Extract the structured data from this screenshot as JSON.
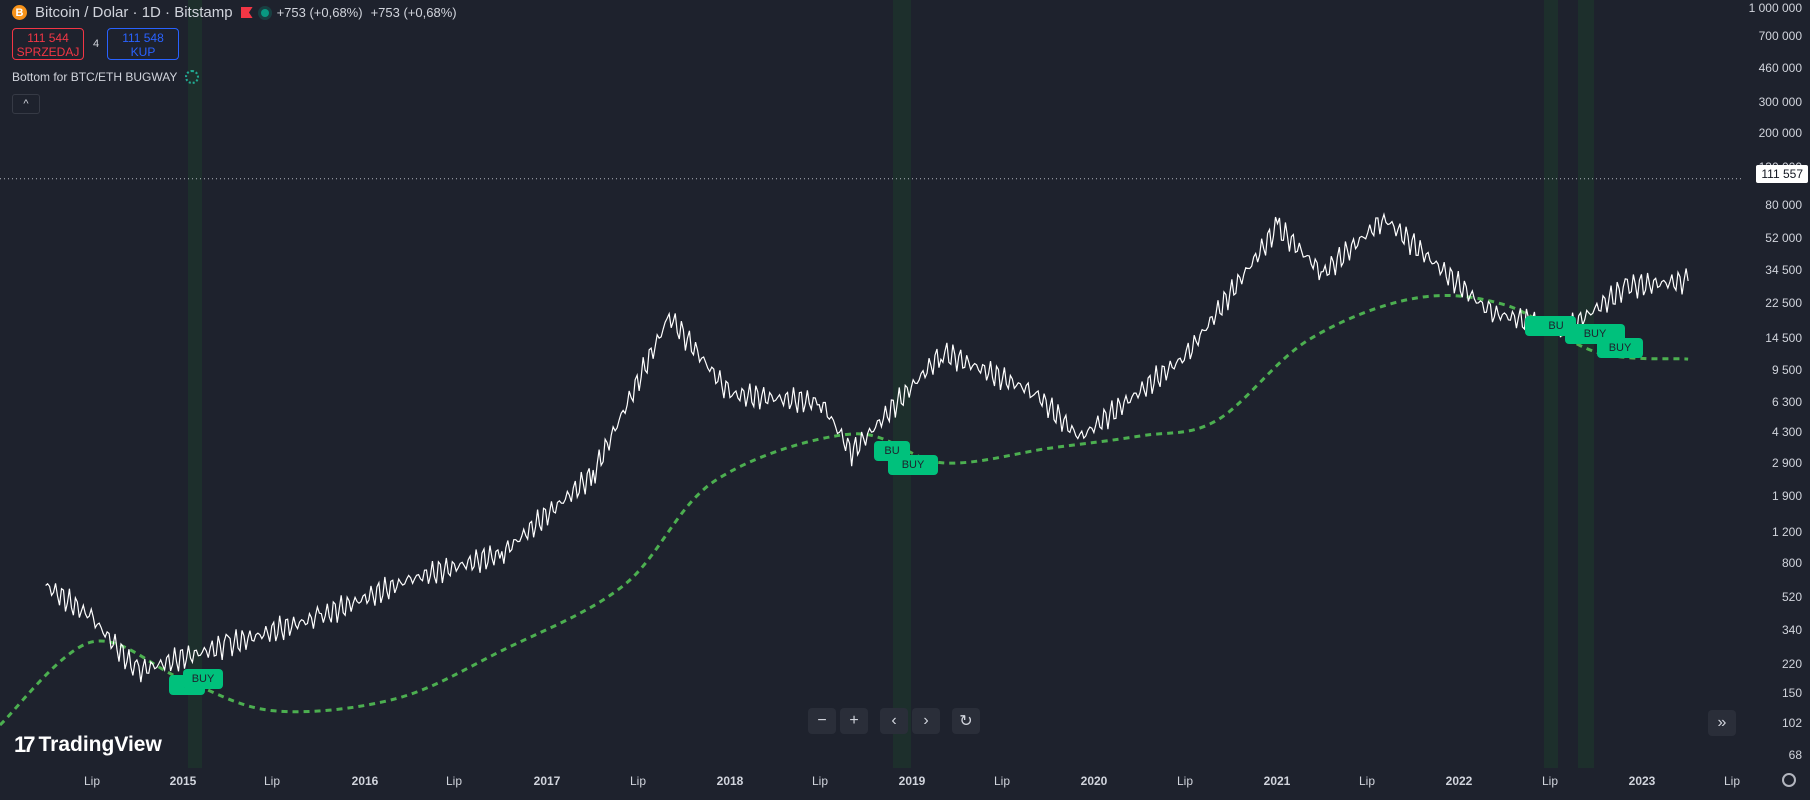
{
  "header": {
    "symbol": "Bitcoin / Dolar · 1D · Bitstamp",
    "coin_glyph": "B",
    "change1": "+753 (+0,68%)",
    "change2": "+753 (+0,68%)"
  },
  "trade": {
    "sell_price": "111 544",
    "sell_label": "SPRZEDAJ",
    "spread": "4",
    "buy_price": "111 548",
    "buy_label": "KUP"
  },
  "indicator": {
    "name": "Bottom for BTC/ETH BUGWAY"
  },
  "collapse_glyph": "^",
  "current_price": "111 557",
  "price_axis": [
    {
      "label": "1 000 000",
      "value": 1000000
    },
    {
      "label": "700 000",
      "value": 700000
    },
    {
      "label": "460 000",
      "value": 460000
    },
    {
      "label": "300 000",
      "value": 300000
    },
    {
      "label": "200 000",
      "value": 200000
    },
    {
      "label": "130 000",
      "value": 130000
    },
    {
      "label": "80 000",
      "value": 80000
    },
    {
      "label": "52 000",
      "value": 52000
    },
    {
      "label": "34 500",
      "value": 34500
    },
    {
      "label": "22 500",
      "value": 22500
    },
    {
      "label": "14 500",
      "value": 14500
    },
    {
      "label": "9 500",
      "value": 9500
    },
    {
      "label": "6 300",
      "value": 6300
    },
    {
      "label": "4 300",
      "value": 4300
    },
    {
      "label": "2 900",
      "value": 2900
    },
    {
      "label": "1 900",
      "value": 1900
    },
    {
      "label": "1 200",
      "value": 1200
    },
    {
      "label": "800",
      "value": 800
    },
    {
      "label": "520",
      "value": 520
    },
    {
      "label": "340",
      "value": 340
    },
    {
      "label": "220",
      "value": 220
    },
    {
      "label": "150",
      "value": 150
    },
    {
      "label": "102",
      "value": 102
    },
    {
      "label": "68",
      "value": 68
    }
  ],
  "time_axis": [
    {
      "label": "Lip",
      "year": false
    },
    {
      "label": "2015",
      "year": true
    },
    {
      "label": "Lip",
      "year": false
    },
    {
      "label": "2016",
      "year": true
    },
    {
      "label": "Lip",
      "year": false
    },
    {
      "label": "2017",
      "year": true
    },
    {
      "label": "Lip",
      "year": false
    },
    {
      "label": "2018",
      "year": true
    },
    {
      "label": "Lip",
      "year": false
    },
    {
      "label": "2019",
      "year": true
    },
    {
      "label": "Lip",
      "year": false
    },
    {
      "label": "2020",
      "year": true
    },
    {
      "label": "Lip",
      "year": false
    },
    {
      "label": "2021",
      "year": true
    },
    {
      "label": "Lip",
      "year": false
    },
    {
      "label": "2022",
      "year": true
    },
    {
      "label": "Lip",
      "year": false
    },
    {
      "label": "2023",
      "year": true
    },
    {
      "label": "Lip",
      "year": false
    }
  ],
  "buy_label": "BUY",
  "buy_label_partial": "BU",
  "buy_label_short": "B",
  "nav": {
    "zoom_out": "−",
    "zoom_in": "+",
    "back": "‹",
    "forward": "›",
    "reset": "↻",
    "skip": "»"
  },
  "logo": {
    "mark": "17",
    "text": "TradingView"
  },
  "colors": {
    "background": "#1e222d",
    "price_line": "#ffffff",
    "ma_line": "#4caf50",
    "buy_tag": "#00c17c",
    "highlight": "#1e3a2c"
  },
  "chart_data": {
    "type": "line",
    "scale": "log",
    "series": [
      {
        "name": "",
        "x": [
          "2014-07",
          "2014-10",
          "2015-01",
          "2015-07",
          "2016-01",
          "2016-07",
          "2017-01",
          "2017-07",
          "2017-12",
          "2018-04",
          "2018-10",
          "2018-12",
          "2019-06",
          "2019-12",
          "2020-03",
          "2020-10",
          "2021-04",
          "2021-07",
          "2021-11",
          "2022-06",
          "2022-11",
          "2023-03",
          "2023-07"
        ],
        "y": [
          600,
          400,
          200,
          280,
          400,
          650,
          900,
          2500,
          19000,
          7000,
          6300,
          3300,
          12000,
          7200,
          4000,
          11500,
          60000,
          33000,
          67000,
          20000,
          16000,
          28000,
          30000
        ]
      },
      {
        "name": "",
        "x": [
          "2014-04",
          "2014-10",
          "2015-04",
          "2015-10",
          "2016-06",
          "2017-01",
          "2017-09",
          "2018-03",
          "2018-12",
          "2019-06",
          "2020-01",
          "2020-07",
          "2020-12",
          "2021-06",
          "2022-01",
          "2022-07",
          "2023-01",
          "2023-07"
        ],
        "y": [
          100,
          290,
          180,
          120,
          140,
          260,
          600,
          2300,
          4200,
          2900,
          3500,
          4100,
          5000,
          14000,
          24000,
          22000,
          12000,
          11000
        ]
      }
    ],
    "buy_signals": [
      "2015-01",
      "2018-12",
      "2019-01",
      "2022-06",
      "2022-07",
      "2022-09",
      "2022-11"
    ]
  }
}
